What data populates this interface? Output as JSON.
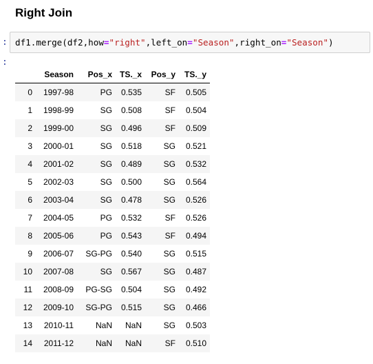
{
  "heading": "Right Join",
  "cell": {
    "input_prompt": ":",
    "output_prompt": ":",
    "code": {
      "obj": "df1",
      "dot": ".",
      "method": "merge(df2,how",
      "eq1": "=",
      "how_val": "\"right\"",
      "sep1": ",left_on",
      "eq2": "=",
      "left_val": "\"Season\"",
      "sep2": ",right_on",
      "eq3": "=",
      "right_val": "\"Season\"",
      "close": ")"
    }
  },
  "table": {
    "index_header": "",
    "columns": [
      "Season",
      "Pos_x",
      "TS._x",
      "Pos_y",
      "TS._y"
    ],
    "rows": [
      {
        "index": "0",
        "cells": [
          "1997-98",
          "PG",
          "0.535",
          "SF",
          "0.505"
        ]
      },
      {
        "index": "1",
        "cells": [
          "1998-99",
          "SG",
          "0.508",
          "SF",
          "0.504"
        ]
      },
      {
        "index": "2",
        "cells": [
          "1999-00",
          "SG",
          "0.496",
          "SF",
          "0.509"
        ]
      },
      {
        "index": "3",
        "cells": [
          "2000-01",
          "SG",
          "0.518",
          "SG",
          "0.521"
        ]
      },
      {
        "index": "4",
        "cells": [
          "2001-02",
          "SG",
          "0.489",
          "SG",
          "0.532"
        ]
      },
      {
        "index": "5",
        "cells": [
          "2002-03",
          "SG",
          "0.500",
          "SG",
          "0.564"
        ]
      },
      {
        "index": "6",
        "cells": [
          "2003-04",
          "SG",
          "0.478",
          "SG",
          "0.526"
        ]
      },
      {
        "index": "7",
        "cells": [
          "2004-05",
          "PG",
          "0.532",
          "SF",
          "0.526"
        ]
      },
      {
        "index": "8",
        "cells": [
          "2005-06",
          "PG",
          "0.543",
          "SF",
          "0.494"
        ]
      },
      {
        "index": "9",
        "cells": [
          "2006-07",
          "SG-PG",
          "0.540",
          "SG",
          "0.515"
        ]
      },
      {
        "index": "10",
        "cells": [
          "2007-08",
          "SG",
          "0.567",
          "SG",
          "0.487"
        ]
      },
      {
        "index": "11",
        "cells": [
          "2008-09",
          "PG-SG",
          "0.504",
          "SG",
          "0.492"
        ]
      },
      {
        "index": "12",
        "cells": [
          "2009-10",
          "SG-PG",
          "0.515",
          "SG",
          "0.466"
        ]
      },
      {
        "index": "13",
        "cells": [
          "2010-11",
          "NaN",
          "NaN",
          "SG",
          "0.503"
        ]
      },
      {
        "index": "14",
        "cells": [
          "2011-12",
          "NaN",
          "NaN",
          "SF",
          "0.510"
        ]
      }
    ]
  }
}
